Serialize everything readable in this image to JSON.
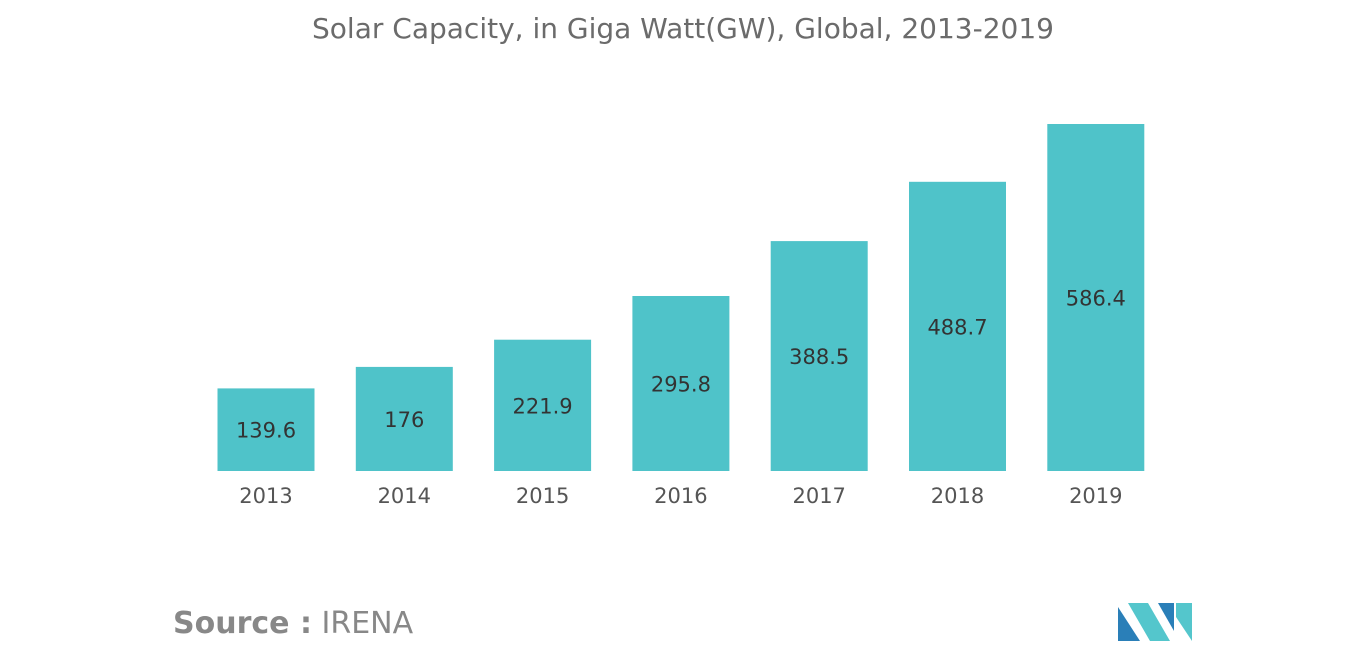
{
  "colors": {
    "bar": "#4fc3c9",
    "logo_dark": "#2a7fb8",
    "logo_light": "#54c6cc"
  },
  "source": {
    "prefix": "Source :",
    "name": "IRENA"
  },
  "logo": {
    "icon": "mordor-intelligence-logo-icon"
  },
  "chart_data": {
    "type": "bar",
    "title": "Solar Capacity, in Giga Watt(GW), Global, 2013-2019",
    "categories": [
      "2013",
      "2014",
      "2015",
      "2016",
      "2017",
      "2018",
      "2019"
    ],
    "values": [
      139.6,
      176,
      221.9,
      295.8,
      388.5,
      488.7,
      586.4
    ],
    "value_labels": [
      "139.6",
      "176",
      "221.9",
      "295.8",
      "388.5",
      "488.7",
      "586.4"
    ],
    "xlabel": "",
    "ylabel": "",
    "ylim": [
      0,
      586.4
    ],
    "grid": false,
    "legend": "none"
  }
}
